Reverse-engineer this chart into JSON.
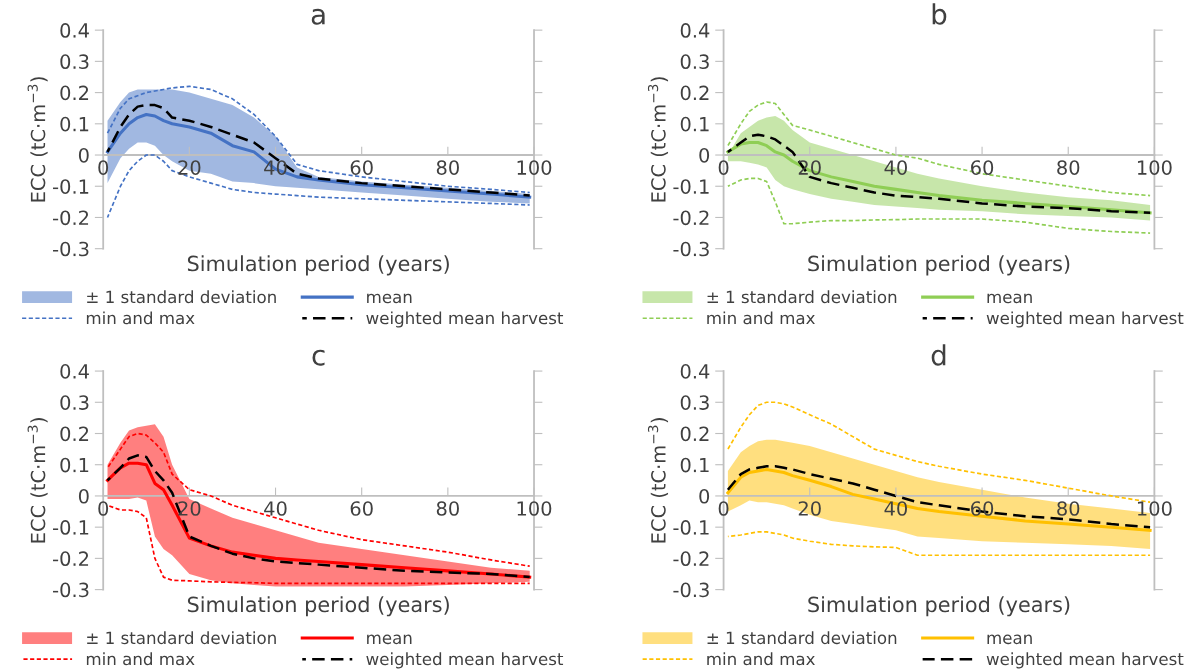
{
  "chart_data": [
    {
      "type": "line",
      "title": "a",
      "annotations": [
        "± 1 standard deviation"
      ],
      "xlabel": "Simulation period (years)",
      "ylabel": "ECC (tC·m$^{−3}$)",
      "x": [
        1,
        4,
        6,
        8,
        10,
        12,
        14,
        16,
        20,
        25,
        30,
        35,
        40,
        45,
        50,
        60,
        70,
        80,
        90,
        99
      ],
      "xlim": [
        0,
        100
      ],
      "xticks": [
        0,
        20,
        40,
        60,
        80,
        100
      ],
      "ylim": [
        -0.3,
        0.4
      ],
      "yticks": [
        -0.3,
        -0.2,
        -0.1,
        0,
        0.1,
        0.2,
        0.3,
        0.4
      ],
      "legend": "bottom",
      "series": [
        {
          "name": "mean",
          "type": "line",
          "color": "#4472c4",
          "line_style": "solid",
          "values": [
            0.01,
            0.07,
            0.1,
            0.12,
            0.13,
            0.125,
            0.11,
            0.1,
            0.09,
            0.07,
            0.03,
            0.01,
            -0.045,
            -0.07,
            -0.08,
            -0.095,
            -0.105,
            -0.115,
            -0.125,
            -0.135
          ],
          "lower": [
            -0.09,
            -0.01,
            0.02,
            0.04,
            0.04,
            0.03,
            0,
            -0.02,
            -0.05,
            -0.06,
            -0.085,
            -0.09,
            -0.1,
            -0.105,
            -0.11,
            -0.12,
            -0.13,
            -0.14,
            -0.15,
            -0.155
          ],
          "upper": [
            0.11,
            0.17,
            0.2,
            0.21,
            0.21,
            0.21,
            0.21,
            0.21,
            0.2,
            0.18,
            0.16,
            0.12,
            0.06,
            -0.04,
            -0.07,
            -0.085,
            -0.095,
            -0.105,
            -0.115,
            -0.125
          ]
        },
        {
          "name": "min and max",
          "type": "line",
          "color": "#4472c4",
          "line_style": "dotted",
          "values": [
            0.07,
            0.15,
            0.18,
            0.19,
            0.2,
            0.205,
            0.21,
            0.215,
            0.22,
            0.21,
            0.18,
            0.13,
            0.06,
            -0.03,
            -0.05,
            -0.07,
            -0.085,
            -0.1,
            -0.11,
            -0.12
          ]
        },
        {
          "name": "weighted mean harvest",
          "type": "line",
          "color": "#000000",
          "line_style": "dashed",
          "values": [
            0.01,
            0.09,
            0.13,
            0.155,
            0.16,
            0.16,
            0.15,
            0.12,
            0.11,
            0.09,
            0.065,
            0.04,
            -0.01,
            -0.06,
            -0.075,
            -0.09,
            -0.1,
            -0.11,
            -0.12,
            -0.13
          ]
        },
        {
          "type": "line",
          "color": "#4472c4",
          "line_style": "dotted",
          "values": [
            -0.2,
            -0.1,
            -0.05,
            -0.02,
            0,
            0,
            -0.02,
            -0.05,
            -0.07,
            -0.09,
            -0.11,
            -0.12,
            -0.125,
            -0.13,
            -0.135,
            -0.14,
            -0.145,
            -0.15,
            -0.155,
            -0.16
          ]
        }
      ]
    },
    {
      "type": "line",
      "title": "b",
      "annotations": [
        "± 1 standard deviation"
      ],
      "xlabel": "Simulation period (years)",
      "ylabel": "ECC (tC·m$^{−3}$)",
      "x": [
        1,
        4,
        6,
        8,
        10,
        12,
        14,
        16,
        20,
        25,
        30,
        35,
        40,
        45,
        50,
        60,
        70,
        80,
        90,
        99
      ],
      "xlim": [
        0,
        100
      ],
      "xticks": [
        0,
        20,
        40,
        60,
        80,
        100
      ],
      "ylim": [
        -0.3,
        0.4
      ],
      "yticks": [
        -0.3,
        -0.2,
        -0.1,
        0,
        0.1,
        0.2,
        0.3,
        0.4
      ],
      "legend": "bottom",
      "series": [
        {
          "name": "mean",
          "type": "line",
          "color": "#8fce55",
          "line_style": "solid",
          "values": [
            0.01,
            0.035,
            0.04,
            0.04,
            0.03,
            0.01,
            0,
            -0.02,
            -0.05,
            -0.07,
            -0.085,
            -0.1,
            -0.11,
            -0.12,
            -0.13,
            -0.145,
            -0.155,
            -0.165,
            -0.175,
            -0.185
          ],
          "lower": [
            -0.02,
            -0.02,
            -0.025,
            -0.03,
            -0.04,
            -0.08,
            -0.1,
            -0.11,
            -0.125,
            -0.14,
            -0.15,
            -0.16,
            -0.165,
            -0.17,
            -0.175,
            -0.18,
            -0.19,
            -0.195,
            -0.2,
            -0.21
          ],
          "upper": [
            0,
            0.07,
            0.09,
            0.11,
            0.12,
            0.125,
            0.11,
            0.08,
            0.04,
            0.02,
            0,
            -0.02,
            -0.04,
            -0.06,
            -0.075,
            -0.1,
            -0.12,
            -0.135,
            -0.145,
            -0.16
          ]
        },
        {
          "name": "min and max",
          "type": "line",
          "color": "#8fce55",
          "line_style": "dotted",
          "values": [
            0.03,
            0.1,
            0.14,
            0.16,
            0.17,
            0.165,
            0.13,
            0.095,
            0.08,
            0.06,
            0.04,
            0.02,
            0,
            -0.01,
            -0.03,
            -0.06,
            -0.08,
            -0.1,
            -0.12,
            -0.13
          ]
        },
        {
          "name": "weighted mean harvest",
          "type": "line",
          "color": "#000000",
          "line_style": "dashed",
          "values": [
            0.01,
            0.04,
            0.06,
            0.065,
            0.06,
            0.05,
            0.03,
            0.01,
            -0.07,
            -0.09,
            -0.105,
            -0.12,
            -0.13,
            -0.135,
            -0.14,
            -0.155,
            -0.165,
            -0.17,
            -0.18,
            -0.185
          ]
        },
        {
          "type": "line",
          "color": "#8fce55",
          "line_style": "dotted",
          "values": [
            -0.1,
            -0.08,
            -0.075,
            -0.075,
            -0.085,
            -0.15,
            -0.22,
            -0.22,
            -0.215,
            -0.21,
            -0.21,
            -0.208,
            -0.207,
            -0.205,
            -0.205,
            -0.205,
            -0.215,
            -0.235,
            -0.245,
            -0.25
          ]
        }
      ]
    },
    {
      "type": "line",
      "title": "c",
      "annotations": [
        "± 1 standard deviation"
      ],
      "xlabel": "Simulation period (years)",
      "ylabel": "ECC (tC·m$^{−3}$)",
      "x": [
        1,
        4,
        6,
        8,
        10,
        12,
        14,
        16,
        20,
        25,
        30,
        35,
        40,
        45,
        50,
        60,
        70,
        80,
        90,
        99
      ],
      "xlim": [
        0,
        100
      ],
      "xticks": [
        0,
        20,
        40,
        60,
        80,
        100
      ],
      "ylim": [
        -0.3,
        0.4
      ],
      "yticks": [
        -0.3,
        -0.2,
        -0.1,
        0,
        0.1,
        0.2,
        0.3,
        0.4
      ],
      "legend": "bottom",
      "series": [
        {
          "name": "mean",
          "type": "line",
          "color": "#ff0000",
          "line_style": "solid",
          "values": [
            0.05,
            0.09,
            0.105,
            0.105,
            0.1,
            0.04,
            0.02,
            -0.03,
            -0.135,
            -0.16,
            -0.18,
            -0.19,
            -0.2,
            -0.205,
            -0.21,
            -0.22,
            -0.23,
            -0.24,
            -0.25,
            -0.26
          ],
          "lower": [
            -0.01,
            -0.01,
            -0.01,
            -0.005,
            -0.015,
            -0.13,
            -0.17,
            -0.19,
            -0.25,
            -0.27,
            -0.28,
            -0.285,
            -0.29,
            -0.29,
            -0.29,
            -0.29,
            -0.29,
            -0.285,
            -0.28,
            -0.275
          ],
          "upper": [
            0.1,
            0.17,
            0.21,
            0.22,
            0.225,
            0.23,
            0.19,
            0.1,
            -0.01,
            -0.04,
            -0.07,
            -0.09,
            -0.11,
            -0.13,
            -0.15,
            -0.17,
            -0.19,
            -0.21,
            -0.23,
            -0.24
          ]
        },
        {
          "name": "min and max",
          "type": "line",
          "color": "#ff0000",
          "line_style": "dotted",
          "values": [
            0.09,
            0.15,
            0.19,
            0.2,
            0.195,
            0.17,
            0.14,
            0.07,
            0.02,
            0,
            -0.03,
            -0.05,
            -0.07,
            -0.09,
            -0.11,
            -0.14,
            -0.16,
            -0.18,
            -0.205,
            -0.225
          ]
        },
        {
          "name": "weighted mean harvest",
          "type": "line",
          "color": "#000000",
          "line_style": "dashed",
          "values": [
            0.05,
            0.09,
            0.12,
            0.13,
            0.125,
            0.08,
            0.05,
            0.01,
            -0.13,
            -0.16,
            -0.185,
            -0.2,
            -0.21,
            -0.215,
            -0.22,
            -0.23,
            -0.24,
            -0.245,
            -0.25,
            -0.26
          ]
        },
        {
          "type": "line",
          "color": "#ff0000",
          "line_style": "dotted",
          "values": [
            -0.03,
            -0.045,
            -0.045,
            -0.05,
            -0.07,
            -0.2,
            -0.26,
            -0.27,
            -0.272,
            -0.275,
            -0.277,
            -0.278,
            -0.28,
            -0.28,
            -0.28,
            -0.28,
            -0.28,
            -0.28,
            -0.28,
            -0.28
          ]
        }
      ]
    },
    {
      "type": "line",
      "title": "d",
      "annotations": [
        "± 1 standard deviation"
      ],
      "xlabel": "Simulation period (years)",
      "ylabel": "ECC (tC·m$^{−3}$)",
      "x": [
        1,
        4,
        6,
        8,
        10,
        12,
        14,
        16,
        20,
        25,
        30,
        35,
        40,
        45,
        50,
        60,
        70,
        80,
        90,
        99
      ],
      "xlim": [
        0,
        100
      ],
      "xticks": [
        0,
        20,
        40,
        60,
        80,
        100
      ],
      "ylim": [
        -0.3,
        0.4
      ],
      "yticks": [
        -0.3,
        -0.2,
        -0.1,
        0,
        0.1,
        0.2,
        0.3,
        0.4
      ],
      "legend": "bottom",
      "series": [
        {
          "name": "mean",
          "type": "line",
          "color": "#ffc000",
          "line_style": "solid",
          "values": [
            0.01,
            0.06,
            0.075,
            0.08,
            0.085,
            0.08,
            0.075,
            0.065,
            0.05,
            0.03,
            0.005,
            -0.01,
            -0.025,
            -0.04,
            -0.05,
            -0.065,
            -0.08,
            -0.09,
            -0.1,
            -0.11
          ],
          "lower": [
            -0.05,
            -0.03,
            -0.015,
            -0.02,
            -0.02,
            -0.025,
            -0.03,
            -0.04,
            -0.06,
            -0.08,
            -0.09,
            -0.1,
            -0.11,
            -0.13,
            -0.135,
            -0.145,
            -0.15,
            -0.155,
            -0.16,
            -0.17
          ],
          "upper": [
            0.08,
            0.14,
            0.16,
            0.175,
            0.18,
            0.18,
            0.175,
            0.17,
            0.16,
            0.14,
            0.12,
            0.1,
            0.08,
            0.06,
            0.045,
            0.02,
            -0.005,
            -0.025,
            -0.04,
            -0.055
          ]
        },
        {
          "name": "min and max",
          "type": "line",
          "color": "#ffc000",
          "line_style": "dotted",
          "values": [
            0.15,
            0.22,
            0.26,
            0.29,
            0.3,
            0.3,
            0.295,
            0.285,
            0.26,
            0.23,
            0.19,
            0.15,
            0.13,
            0.11,
            0.095,
            0.07,
            0.05,
            0.025,
            0,
            -0.02
          ]
        },
        {
          "name": "weighted mean harvest",
          "type": "line",
          "color": "#000000",
          "line_style": "dashed",
          "values": [
            0.02,
            0.07,
            0.085,
            0.09,
            0.095,
            0.095,
            0.09,
            0.085,
            0.07,
            0.055,
            0.04,
            0.02,
            0,
            -0.02,
            -0.03,
            -0.05,
            -0.065,
            -0.075,
            -0.09,
            -0.1
          ]
        },
        {
          "type": "line",
          "color": "#ffc000",
          "line_style": "dotted",
          "values": [
            -0.13,
            -0.125,
            -0.12,
            -0.115,
            -0.115,
            -0.12,
            -0.125,
            -0.135,
            -0.145,
            -0.155,
            -0.16,
            -0.163,
            -0.165,
            -0.19,
            -0.19,
            -0.19,
            -0.19,
            -0.19,
            -0.19,
            -0.19
          ]
        }
      ]
    }
  ]
}
